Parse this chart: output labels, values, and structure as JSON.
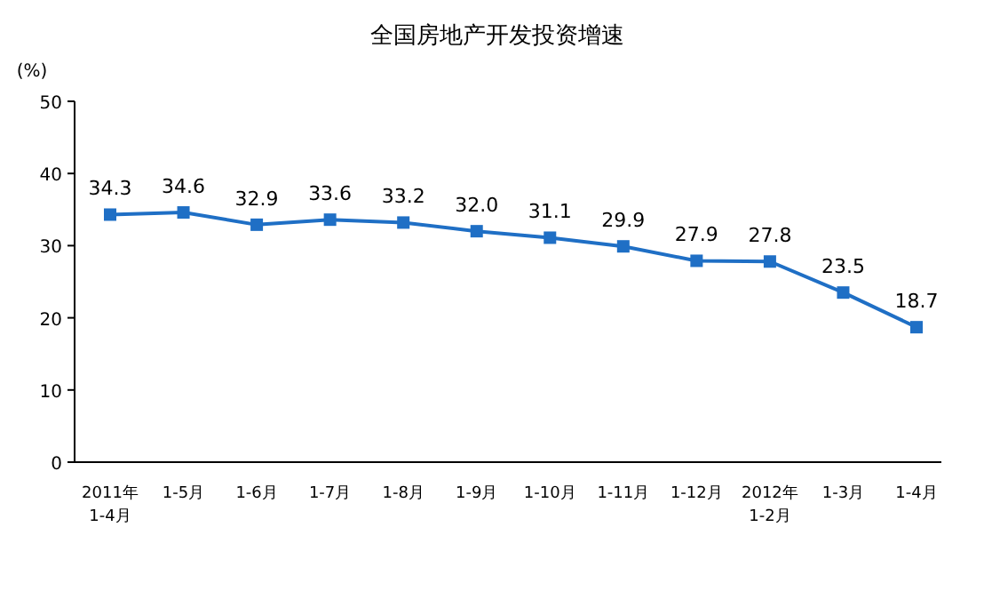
{
  "chart_data": {
    "type": "line",
    "title": "全国房地产开发投资增速",
    "ylabel": "(%)",
    "categories": [
      "2011年\n1-4月",
      "1-5月",
      "1-6月",
      "1-7月",
      "1-8月",
      "1-9月",
      "1-10月",
      "1-11月",
      "1-12月",
      "2012年\n1-2月",
      "1-3月",
      "1-4月"
    ],
    "series": [
      {
        "color": "#1f6fc5",
        "values": [
          34.3,
          34.6,
          32.9,
          33.6,
          33.2,
          32.0,
          31.1,
          29.9,
          27.9,
          27.8,
          23.5,
          18.7
        ],
        "value_labels": [
          "34.3",
          "34.6",
          "32.9",
          "33.6",
          "33.2",
          "32.0",
          "31.1",
          "29.9",
          "27.9",
          "27.8",
          "23.5",
          "18.7"
        ]
      }
    ],
    "ylim": [
      0,
      50
    ],
    "yticks": [
      0,
      10,
      20,
      30,
      40,
      50
    ],
    "marker": "square",
    "grid": false
  }
}
